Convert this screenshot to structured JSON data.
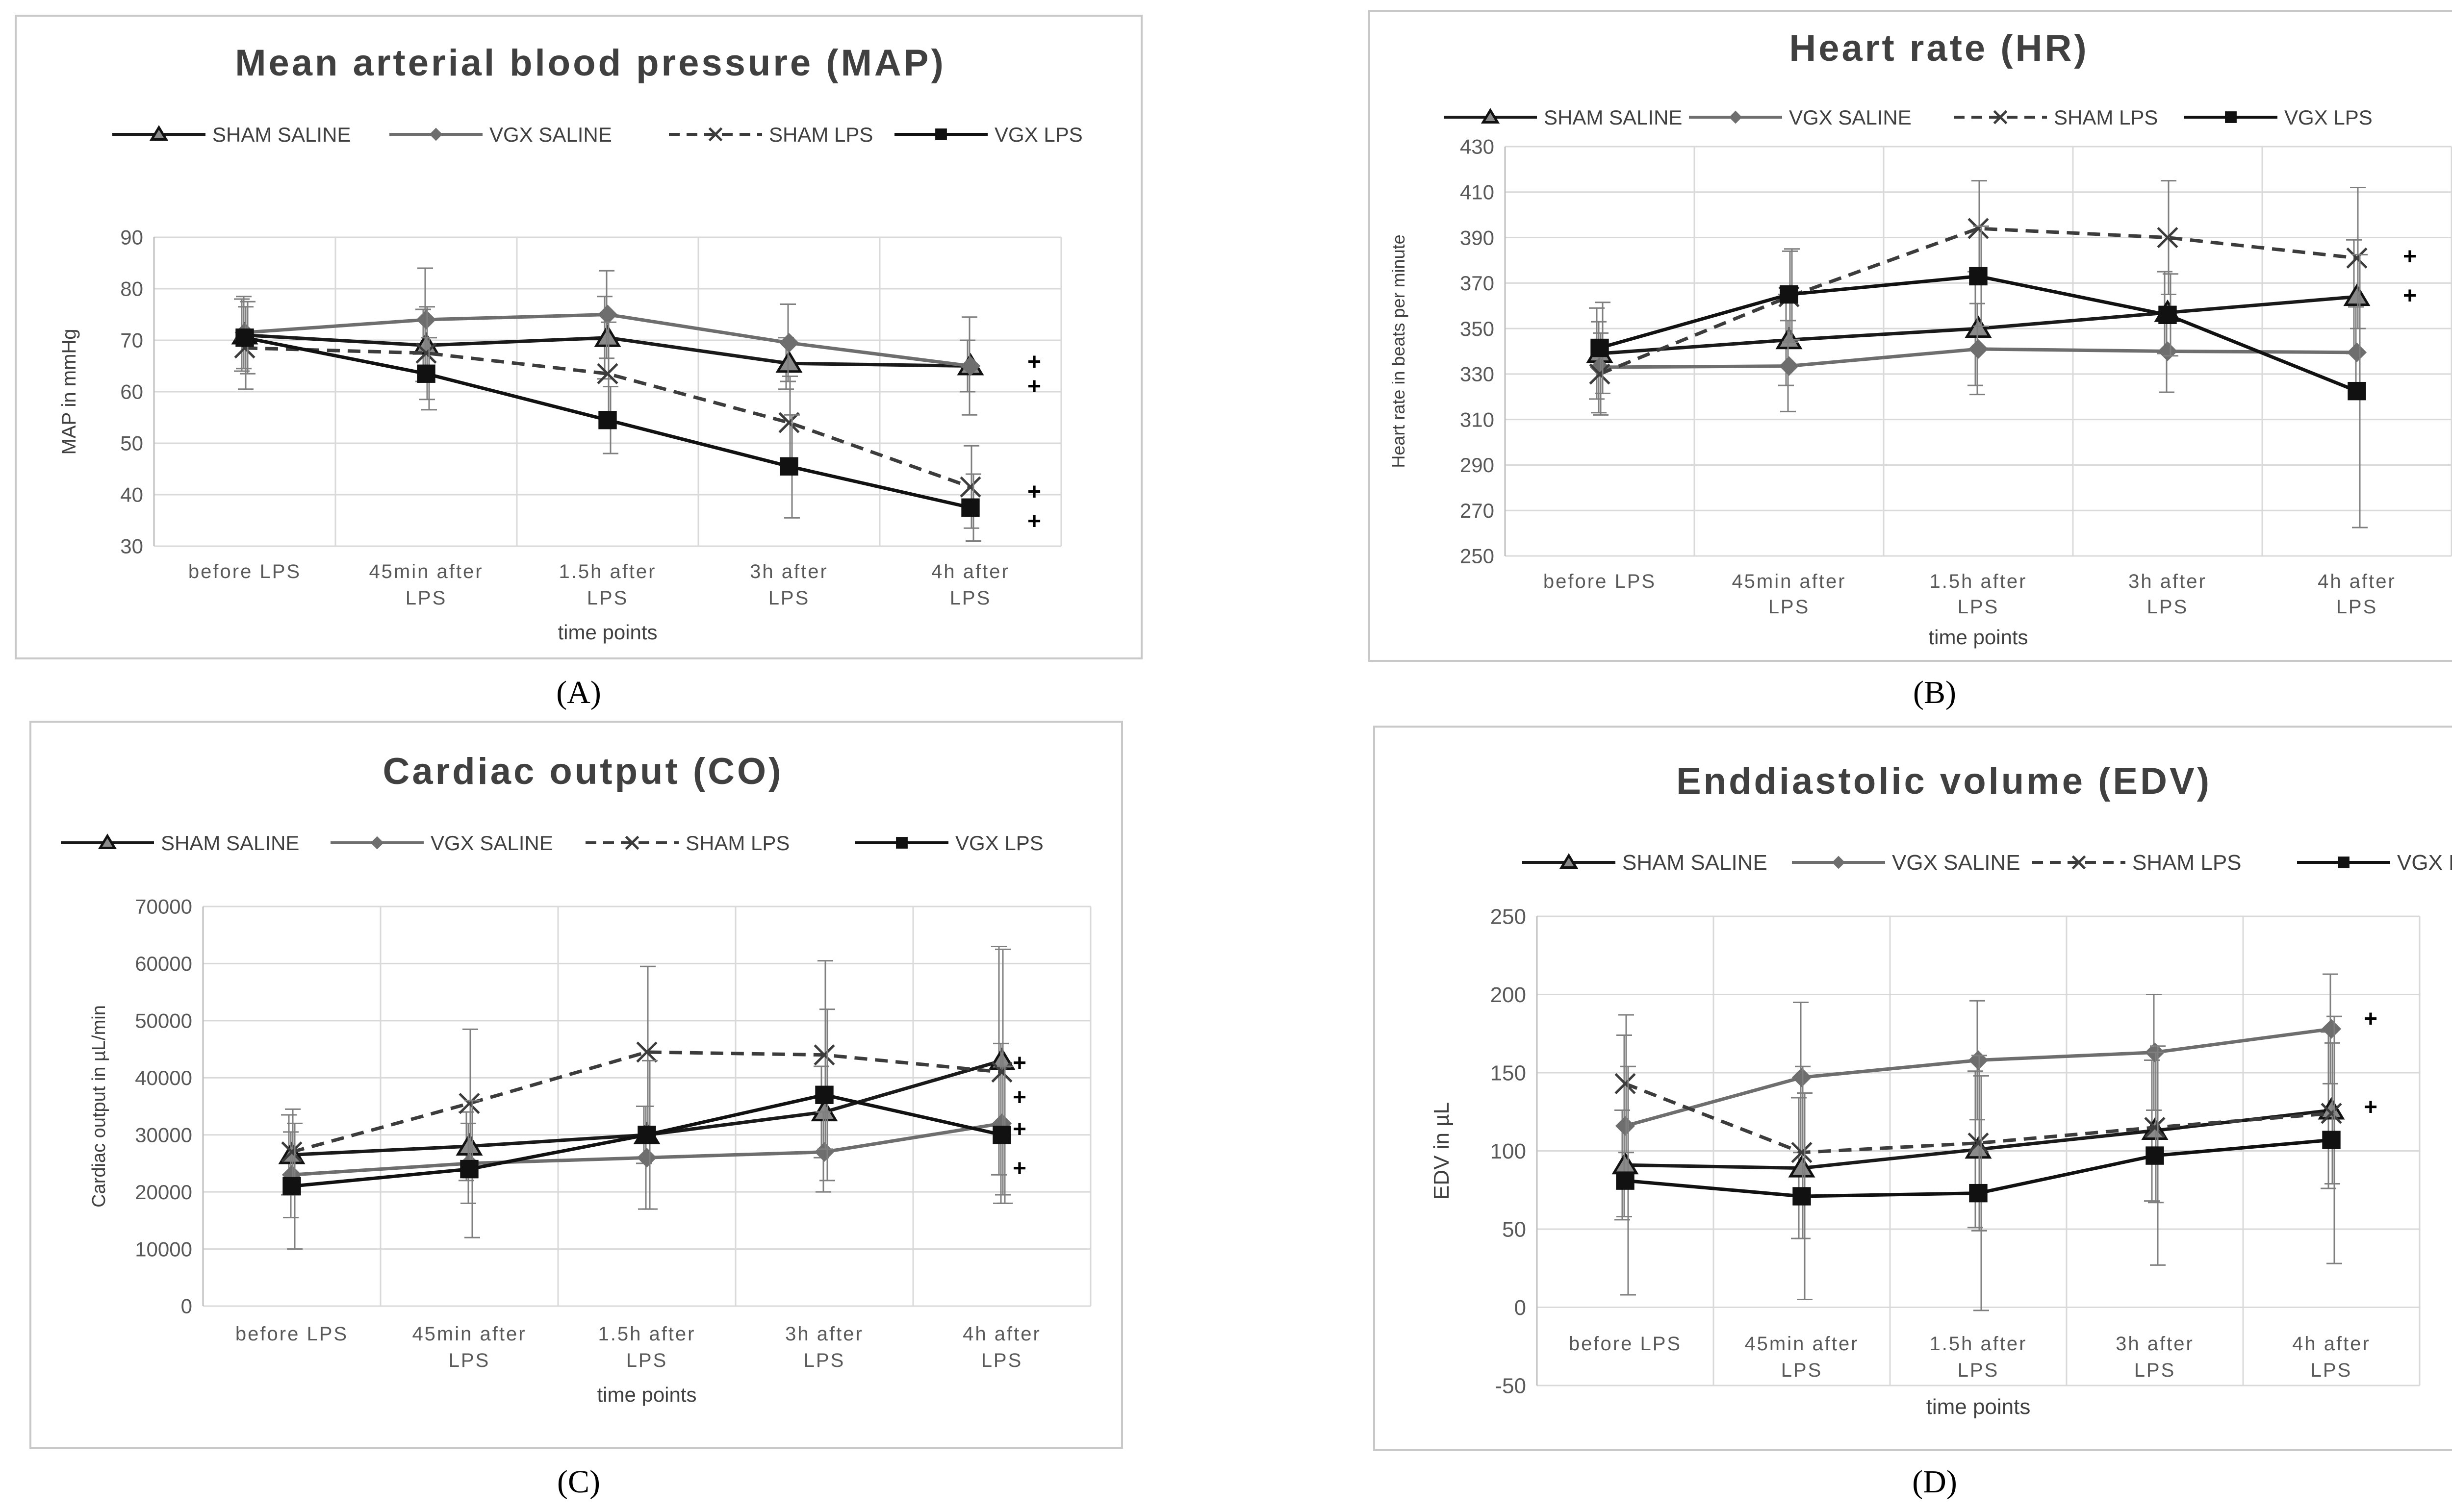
{
  "legend": [
    "SHAM SALINE",
    "VGX SALINE",
    "SHAM LPS",
    "VGX LPS"
  ],
  "series_styles": {
    "SHAM SALINE": {
      "color": "#1a1a1a",
      "marker": "triangle",
      "dash": false
    },
    "VGX SALINE": {
      "color": "#6e6e6e",
      "marker": "diamond",
      "dash": false
    },
    "SHAM LPS": {
      "color": "#3c3c3c",
      "marker": "cross",
      "dash": true
    },
    "VGX LPS": {
      "color": "#111111",
      "marker": "square",
      "dash": false
    }
  },
  "captions": [
    "(A)",
    "(B)",
    "(C)",
    "(D)"
  ],
  "chart_data": [
    {
      "type": "line",
      "title": "Mean arterial blood pressure (MAP)",
      "xlabel": "time points",
      "ylabel": "MAP in mmHg",
      "ylim": [
        30,
        90
      ],
      "yticks": [
        "30",
        "40",
        "50",
        "60",
        "70",
        "80",
        "90"
      ],
      "categories": [
        [
          "before LPS"
        ],
        [
          "45min after",
          "LPS"
        ],
        [
          "1.5h after",
          "LPS"
        ],
        [
          "3h after",
          "LPS"
        ],
        [
          "4h after",
          "LPS"
        ]
      ],
      "series": [
        {
          "name": "SHAM SALINE",
          "values": [
            71,
            69,
            70.5,
            65.5,
            65
          ],
          "err": [
            7,
            7,
            8,
            5,
            5
          ]
        },
        {
          "name": "VGX SALINE",
          "values": [
            71.5,
            74,
            75,
            69.5,
            65
          ],
          "err": [
            7,
            10,
            8.5,
            7.5,
            9.5
          ]
        },
        {
          "name": "SHAM LPS",
          "values": [
            68.5,
            67.5,
            63.5,
            54,
            41.5
          ],
          "err": [
            8,
            9,
            10,
            9,
            8
          ]
        },
        {
          "name": "VGX LPS",
          "values": [
            70.5,
            63.5,
            54.5,
            45.5,
            37.5
          ],
          "err": [
            7,
            7,
            6.5,
            10,
            6.5
          ]
        }
      ],
      "annotations": [
        "+",
        "+",
        "+",
        "+"
      ]
    },
    {
      "type": "line",
      "title": "Heart rate (HR)",
      "xlabel": "time points",
      "ylabel": "Heart rate in beats per minute",
      "ylim": [
        250,
        430
      ],
      "yticks": [
        "250",
        "270",
        "290",
        "310",
        "330",
        "350",
        "370",
        "390",
        "410",
        "430"
      ],
      "categories": [
        [
          "before LPS"
        ],
        [
          "45min after",
          "LPS"
        ],
        [
          "1.5h after",
          "LPS"
        ],
        [
          "3h after",
          "LPS"
        ],
        [
          "4h after",
          "LPS"
        ]
      ],
      "series": [
        {
          "name": "SHAM SALINE",
          "values": [
            339,
            345,
            350,
            357,
            364
          ],
          "err": [
            20,
            20,
            25,
            18,
            25
          ]
        },
        {
          "name": "VGX SALINE",
          "values": [
            333,
            333.5,
            341,
            340,
            339.5
          ],
          "err": [
            20,
            20,
            20,
            18,
            20
          ]
        },
        {
          "name": "SHAM LPS",
          "values": [
            330,
            364,
            394,
            390,
            381
          ],
          "err": [
            18,
            20,
            21,
            25,
            31
          ]
        },
        {
          "name": "VGX LPS",
          "values": [
            341.5,
            365,
            373,
            356,
            322.5
          ],
          "err": [
            20,
            20,
            22,
            18,
            60
          ]
        }
      ],
      "annotations": [
        "+",
        "+"
      ]
    },
    {
      "type": "line",
      "title": "Cardiac output (CO)",
      "xlabel": "time points",
      "ylabel": "Cardiac output in µL/min",
      "ylim": [
        0,
        70000
      ],
      "yticks": [
        "0",
        "10000",
        "20000",
        "30000",
        "40000",
        "50000",
        "60000",
        "70000"
      ],
      "categories": [
        [
          "before LPS"
        ],
        [
          "45min after",
          "LPS"
        ],
        [
          "1.5h after",
          "LPS"
        ],
        [
          "3h after",
          "LPS"
        ],
        [
          "4h after",
          "LPS"
        ]
      ],
      "series": [
        {
          "name": "SHAM SALINE",
          "values": [
            26500,
            28000,
            30000,
            34000,
            43000
          ],
          "err": [
            7000,
            6000,
            5000,
            8000,
            20000
          ]
        },
        {
          "name": "VGX SALINE",
          "values": [
            23000,
            25000,
            26000,
            27000,
            32000
          ],
          "err": [
            7500,
            7000,
            9000,
            7000,
            14000
          ]
        },
        {
          "name": "SHAM LPS",
          "values": [
            27000,
            35500,
            44500,
            44000,
            41000
          ],
          "err": [
            7500,
            13000,
            15000,
            16500,
            21500
          ]
        },
        {
          "name": "VGX LPS",
          "values": [
            21000,
            24000,
            30000,
            37000,
            30000
          ],
          "err": [
            11000,
            12000,
            13000,
            15000,
            12000
          ]
        }
      ],
      "annotations": [
        "+",
        "+",
        "+",
        "+"
      ]
    },
    {
      "type": "line",
      "title": "Enddiastolic volume (EDV)",
      "xlabel": "time points",
      "ylabel": "EDV in µL",
      "ylim": [
        -50,
        250
      ],
      "yticks": [
        "-50",
        "0",
        "50",
        "100",
        "150",
        "200",
        "250"
      ],
      "categories": [
        [
          "before LPS"
        ],
        [
          "45min after",
          "LPS"
        ],
        [
          "1.5h after",
          "LPS"
        ],
        [
          "3h after",
          "LPS"
        ],
        [
          "4h after",
          "LPS"
        ]
      ],
      "series": [
        {
          "name": "SHAM SALINE",
          "values": [
            91,
            89,
            101,
            113,
            126
          ],
          "err": [
            35,
            45,
            50,
            45,
            50
          ]
        },
        {
          "name": "VGX SALINE",
          "values": [
            116,
            147,
            158,
            163,
            178
          ],
          "err": [
            58,
            48,
            38,
            37,
            35
          ]
        },
        {
          "name": "SHAM LPS",
          "values": [
            143,
            99,
            105,
            115,
            124
          ],
          "err": [
            44,
            55,
            56,
            48,
            45
          ]
        },
        {
          "name": "VGX LPS",
          "values": [
            81,
            71,
            73,
            97,
            107
          ],
          "err": [
            73,
            66,
            75,
            70,
            79
          ]
        }
      ],
      "annotations": [
        "+",
        "+"
      ]
    }
  ]
}
